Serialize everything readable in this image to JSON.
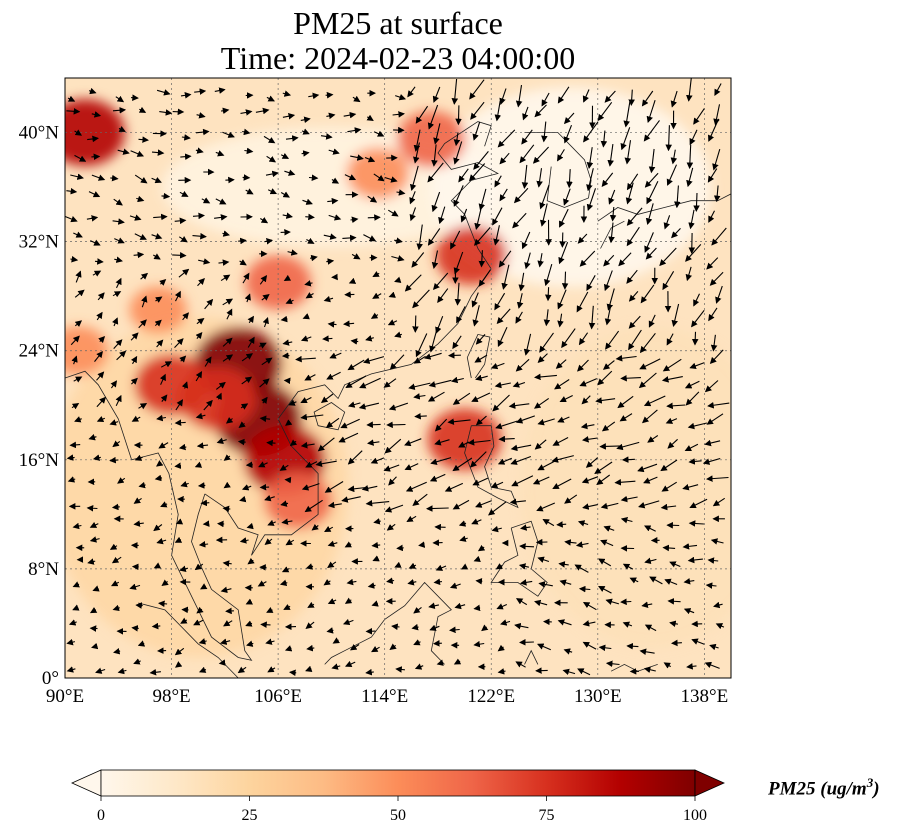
{
  "title": {
    "line1": "PM25 at surface",
    "line2": "Time: 2024-02-23 04:00:00"
  },
  "map": {
    "lon_range": [
      90,
      140
    ],
    "lat_range": [
      0,
      44
    ],
    "lon_ticks": [
      {
        "value": 90,
        "label": "90°E"
      },
      {
        "value": 98,
        "label": "98°E"
      },
      {
        "value": 106,
        "label": "106°E"
      },
      {
        "value": 114,
        "label": "114°E"
      },
      {
        "value": 122,
        "label": "122°E"
      },
      {
        "value": 130,
        "label": "130°E"
      },
      {
        "value": 138,
        "label": "138°E"
      }
    ],
    "lat_ticks": [
      {
        "value": 0,
        "label": "0°"
      },
      {
        "value": 8,
        "label": "8°N"
      },
      {
        "value": 16,
        "label": "16°N"
      },
      {
        "value": 24,
        "label": "24°N"
      },
      {
        "value": 32,
        "label": "32°N"
      },
      {
        "value": 40,
        "label": "40°N"
      }
    ],
    "gridlines": true,
    "wind_vectors": "black arrows",
    "hotspots": [
      {
        "lon": 91.5,
        "lat": 40,
        "value": 85
      },
      {
        "lon": 103,
        "lat": 23,
        "value": 100
      },
      {
        "lon": 104.5,
        "lat": 19,
        "value": 100
      },
      {
        "lon": 106.5,
        "lat": 16,
        "value": 90
      },
      {
        "lon": 101.5,
        "lat": 20.5,
        "value": 80
      },
      {
        "lon": 98,
        "lat": 21.5,
        "value": 75
      },
      {
        "lon": 107.5,
        "lat": 13,
        "value": 65
      },
      {
        "lon": 106,
        "lat": 29,
        "value": 60
      },
      {
        "lon": 113.5,
        "lat": 37,
        "value": 55
      },
      {
        "lon": 117.5,
        "lat": 39.5,
        "value": 65
      },
      {
        "lon": 120.5,
        "lat": 31,
        "value": 70
      },
      {
        "lon": 120,
        "lat": 17.5,
        "value": 75
      },
      {
        "lon": 97,
        "lat": 27,
        "value": 45
      },
      {
        "lon": 91,
        "lat": 24,
        "value": 50
      }
    ]
  },
  "colorbar": {
    "title": "PM25 (ug/m",
    "title_sup": "3",
    "title_close": ")",
    "colormap": "OrRd",
    "range": [
      0,
      100
    ],
    "extend": "both",
    "ticks": [
      {
        "value": 0,
        "label": "0"
      },
      {
        "value": 25,
        "label": "25"
      },
      {
        "value": 50,
        "label": "50"
      },
      {
        "value": 75,
        "label": "75"
      },
      {
        "value": 100,
        "label": "100"
      }
    ],
    "colors": [
      "#fff7ec",
      "#fee8c8",
      "#fdd49e",
      "#fdbb84",
      "#fc8d59",
      "#ef6548",
      "#d7301f",
      "#b30000",
      "#7f0000"
    ]
  }
}
